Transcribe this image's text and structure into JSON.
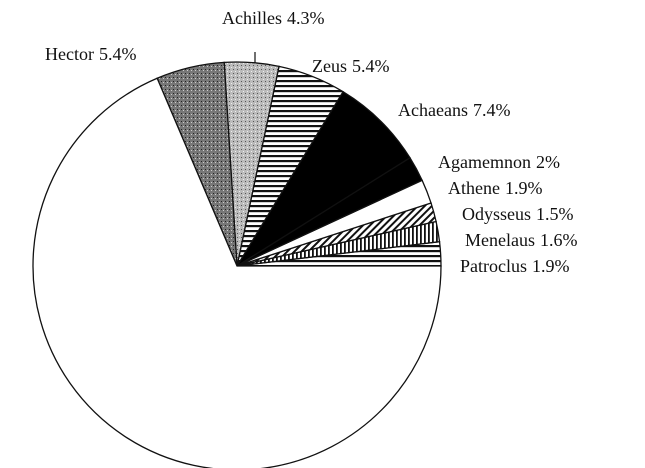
{
  "chart_data": {
    "type": "pie",
    "categories": [
      "Patroclus",
      "Menelaus",
      "Odysseus",
      "Athene",
      "Agamemnon",
      "Achaeans",
      "Zeus",
      "Achilles",
      "Hector",
      null
    ],
    "values": [
      1.9,
      1.6,
      1.5,
      1.9,
      2,
      7.4,
      5.4,
      4.3,
      5.4,
      68.6
    ],
    "value_labels": [
      "1.9%",
      "1.6%",
      "1.5%",
      "1.9%",
      "2%",
      "7.4%",
      "5.4%",
      "4.3%",
      "5.4%",
      null
    ],
    "fills": [
      "hlines",
      "vlines",
      "diag",
      "white",
      "black",
      "black",
      "hlines",
      "lightstipple",
      "darkstipple",
      "white"
    ],
    "start_angle": 0,
    "direction": "counterclockwise"
  }
}
